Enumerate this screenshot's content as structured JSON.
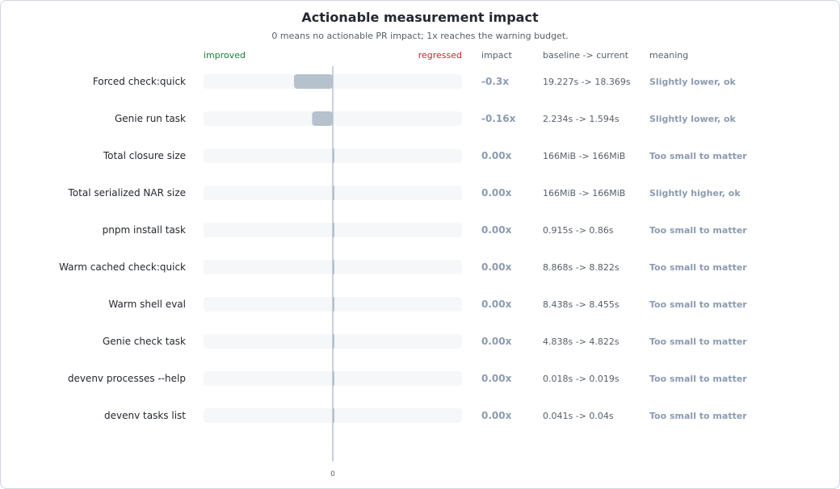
{
  "title": "Actionable measurement impact",
  "subtitle": "0 means no actionable PR impact; 1x reaches the warning budget.",
  "headers": {
    "improved": "improved",
    "regressed": "regressed",
    "impact": "impact",
    "baseline": "baseline -> current",
    "meaning": "meaning"
  },
  "colors": {
    "improved": "#1a7f37",
    "regressed": "#cf222e",
    "bar": "#b6c1ce",
    "track": "#f6f7f9",
    "axis": "#b6c1ce",
    "muted_text": "#8c9bb0"
  },
  "chart_data": {
    "type": "bar",
    "orientation": "horizontal",
    "title": "Actionable measurement impact",
    "subtitle": "0 means no actionable PR impact; 1x reaches the warning budget.",
    "xlim": [
      -1,
      1
    ],
    "x_tick_labels": [
      "0"
    ],
    "categories": [
      "Forced check:quick",
      "Genie run task",
      "Total closure size",
      "Total serialized NAR size",
      "pnpm install task",
      "Warm cached check:quick",
      "Warm shell eval",
      "Genie check task",
      "devenv processes --help",
      "devenv tasks list"
    ],
    "values": [
      -0.3,
      -0.16,
      0,
      0,
      0,
      0,
      0,
      0,
      0,
      0
    ],
    "impact_labels": [
      "-0.3x",
      "-0.16x",
      "0.00x",
      "0.00x",
      "0.00x",
      "0.00x",
      "0.00x",
      "0.00x",
      "0.00x",
      "0.00x"
    ],
    "baseline_current": [
      "19.227s -> 18.369s",
      "2.234s -> 1.594s",
      "166MiB -> 166MiB",
      "166MiB -> 166MiB",
      "0.915s -> 0.86s",
      "8.868s -> 8.822s",
      "8.438s -> 8.455s",
      "4.838s -> 4.822s",
      "0.018s -> 0.019s",
      "0.041s -> 0.04s"
    ],
    "meanings": [
      "Slightly lower, ok",
      "Slightly lower, ok",
      "Too small to matter",
      "Slightly higher, ok",
      "Too small to matter",
      "Too small to matter",
      "Too small to matter",
      "Too small to matter",
      "Too small to matter",
      "Too small to matter"
    ],
    "grid": false,
    "legend": "none"
  }
}
